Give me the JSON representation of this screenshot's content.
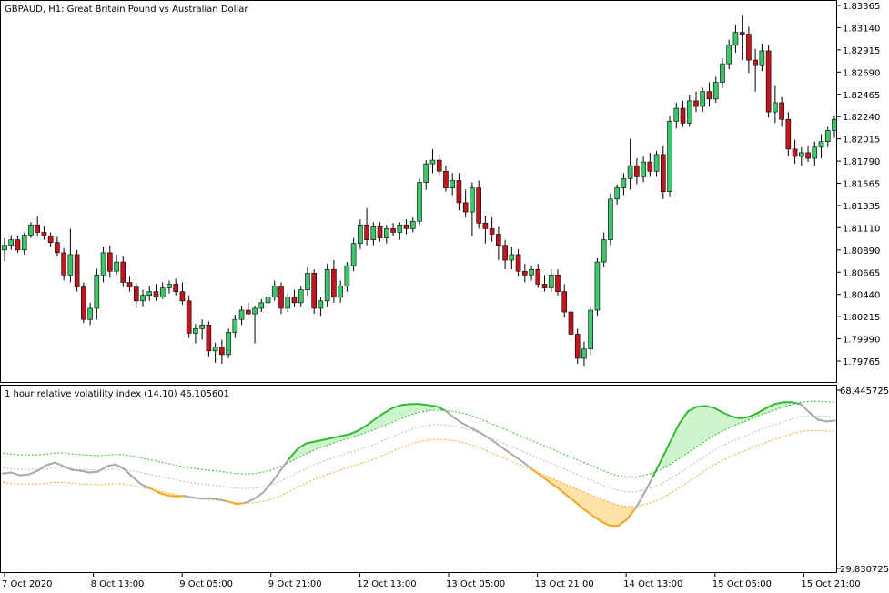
{
  "main_title": "GBPAUD, H1:  Great Britain Pound vs Australian Dollar",
  "indicator_title": "1 hour relative volatility index (14,10) 46.105601",
  "colors": {
    "bull": "#3cc86a",
    "bear": "#c0161f",
    "wick": "#000000",
    "rvi_up": "#33b833",
    "rvi_down": "#f5a623",
    "rvi_neutral": "#a9a9a9",
    "fill_up": "#cdf3cd",
    "fill_down": "#ffe2a8",
    "grid": "#000000"
  },
  "chart_data": [
    {
      "type": "candlestick",
      "title": "GBPAUD, H1:  Great Britain Pound vs Australian Dollar",
      "ylim": [
        1.7965,
        1.835
      ],
      "y_ticks": [
        "1.83365",
        "1.83140",
        "1.82915",
        "1.82690",
        "1.82465",
        "1.82240",
        "1.82015",
        "1.81790",
        "1.81565",
        "1.81335",
        "1.81110",
        "1.80890",
        "1.80665",
        "1.80440",
        "1.80215",
        "1.79990",
        "1.79765"
      ],
      "x_ticks": [
        "7 Oct 2020",
        "8 Oct 13:00",
        "9 Oct 05:00",
        "9 Oct 21:00",
        "12 Oct 13:00",
        "13 Oct 05:00",
        "13 Oct 21:00",
        "14 Oct 13:00",
        "15 Oct 05:00",
        "15 Oct 21:00"
      ],
      "candles": [
        {
          "o": 1.8085,
          "h": 1.8098,
          "l": 1.8073,
          "c": 1.809
        },
        {
          "o": 1.809,
          "h": 1.8101,
          "l": 1.8085,
          "c": 1.8096
        },
        {
          "o": 1.8096,
          "h": 1.81,
          "l": 1.8082,
          "c": 1.8085
        },
        {
          "o": 1.8085,
          "h": 1.8104,
          "l": 1.808,
          "c": 1.8101
        },
        {
          "o": 1.8101,
          "h": 1.8115,
          "l": 1.8098,
          "c": 1.8112
        },
        {
          "o": 1.8112,
          "h": 1.8121,
          "l": 1.81,
          "c": 1.8104
        },
        {
          "o": 1.8104,
          "h": 1.8111,
          "l": 1.8096,
          "c": 1.81
        },
        {
          "o": 1.81,
          "h": 1.8104,
          "l": 1.8088,
          "c": 1.8093
        },
        {
          "o": 1.8093,
          "h": 1.8099,
          "l": 1.8078,
          "c": 1.8082
        },
        {
          "o": 1.8082,
          "h": 1.8087,
          "l": 1.8052,
          "c": 1.8058
        },
        {
          "o": 1.8058,
          "h": 1.8108,
          "l": 1.805,
          "c": 1.808
        },
        {
          "o": 1.808,
          "h": 1.8085,
          "l": 1.804,
          "c": 1.8045
        },
        {
          "o": 1.8045,
          "h": 1.805,
          "l": 1.8006,
          "c": 1.801
        },
        {
          "o": 1.801,
          "h": 1.8028,
          "l": 1.8004,
          "c": 1.8022
        },
        {
          "o": 1.8022,
          "h": 1.8065,
          "l": 1.801,
          "c": 1.8058
        },
        {
          "o": 1.8058,
          "h": 1.8088,
          "l": 1.805,
          "c": 1.8082
        },
        {
          "o": 1.8082,
          "h": 1.809,
          "l": 1.8055,
          "c": 1.8062
        },
        {
          "o": 1.8062,
          "h": 1.808,
          "l": 1.8058,
          "c": 1.8072
        },
        {
          "o": 1.8072,
          "h": 1.8078,
          "l": 1.8045,
          "c": 1.805
        },
        {
          "o": 1.805,
          "h": 1.8056,
          "l": 1.804,
          "c": 1.8045
        },
        {
          "o": 1.8045,
          "h": 1.805,
          "l": 1.8022,
          "c": 1.803
        },
        {
          "o": 1.803,
          "h": 1.8042,
          "l": 1.8024,
          "c": 1.8036
        },
        {
          "o": 1.8036,
          "h": 1.8046,
          "l": 1.803,
          "c": 1.804
        },
        {
          "o": 1.804,
          "h": 1.8048,
          "l": 1.803,
          "c": 1.8034
        },
        {
          "o": 1.8034,
          "h": 1.805,
          "l": 1.8032,
          "c": 1.8044
        },
        {
          "o": 1.8044,
          "h": 1.8052,
          "l": 1.8038,
          "c": 1.8048
        },
        {
          "o": 1.8048,
          "h": 1.8054,
          "l": 1.8036,
          "c": 1.804
        },
        {
          "o": 1.804,
          "h": 1.805,
          "l": 1.8026,
          "c": 1.803
        },
        {
          "o": 1.803,
          "h": 1.8036,
          "l": 1.799,
          "c": 1.7995
        },
        {
          "o": 1.7995,
          "h": 1.8005,
          "l": 1.7984,
          "c": 1.8
        },
        {
          "o": 1.8,
          "h": 1.801,
          "l": 1.7988,
          "c": 1.8004
        },
        {
          "o": 1.8004,
          "h": 1.8008,
          "l": 1.797,
          "c": 1.7976
        },
        {
          "o": 1.7976,
          "h": 1.7985,
          "l": 1.7963,
          "c": 1.798
        },
        {
          "o": 1.798,
          "h": 1.7988,
          "l": 1.7962,
          "c": 1.7972
        },
        {
          "o": 1.7972,
          "h": 1.8,
          "l": 1.7968,
          "c": 1.7996
        },
        {
          "o": 1.7996,
          "h": 1.8015,
          "l": 1.799,
          "c": 1.801
        },
        {
          "o": 1.801,
          "h": 1.8025,
          "l": 1.8004,
          "c": 1.802
        },
        {
          "o": 1.802,
          "h": 1.8028,
          "l": 1.8015,
          "c": 1.8016
        },
        {
          "o": 1.8016,
          "h": 1.8025,
          "l": 1.7984,
          "c": 1.8022
        },
        {
          "o": 1.8022,
          "h": 1.8032,
          "l": 1.8018,
          "c": 1.8028
        },
        {
          "o": 1.8028,
          "h": 1.8038,
          "l": 1.8024,
          "c": 1.8034
        },
        {
          "o": 1.8034,
          "h": 1.8052,
          "l": 1.803,
          "c": 1.8046
        },
        {
          "o": 1.8046,
          "h": 1.805,
          "l": 1.8016,
          "c": 1.8022
        },
        {
          "o": 1.8022,
          "h": 1.8038,
          "l": 1.8018,
          "c": 1.8034
        },
        {
          "o": 1.8034,
          "h": 1.8042,
          "l": 1.8024,
          "c": 1.8028
        },
        {
          "o": 1.8028,
          "h": 1.8046,
          "l": 1.8024,
          "c": 1.8042
        },
        {
          "o": 1.8042,
          "h": 1.8066,
          "l": 1.8036,
          "c": 1.806
        },
        {
          "o": 1.806,
          "h": 1.8064,
          "l": 1.8016,
          "c": 1.8022
        },
        {
          "o": 1.8022,
          "h": 1.8034,
          "l": 1.8014,
          "c": 1.803
        },
        {
          "o": 1.803,
          "h": 1.807,
          "l": 1.8024,
          "c": 1.8064
        },
        {
          "o": 1.8064,
          "h": 1.8074,
          "l": 1.8028,
          "c": 1.8034
        },
        {
          "o": 1.8034,
          "h": 1.8052,
          "l": 1.8028,
          "c": 1.8046
        },
        {
          "o": 1.8046,
          "h": 1.8072,
          "l": 1.804,
          "c": 1.8068
        },
        {
          "o": 1.8068,
          "h": 1.8098,
          "l": 1.8062,
          "c": 1.8092
        },
        {
          "o": 1.8092,
          "h": 1.8118,
          "l": 1.8086,
          "c": 1.8112
        },
        {
          "o": 1.8112,
          "h": 1.813,
          "l": 1.809,
          "c": 1.8096
        },
        {
          "o": 1.8096,
          "h": 1.8115,
          "l": 1.809,
          "c": 1.811
        },
        {
          "o": 1.811,
          "h": 1.8115,
          "l": 1.8094,
          "c": 1.8098
        },
        {
          "o": 1.8098,
          "h": 1.8112,
          "l": 1.8092,
          "c": 1.8108
        },
        {
          "o": 1.8108,
          "h": 1.8114,
          "l": 1.81,
          "c": 1.8104
        },
        {
          "o": 1.8104,
          "h": 1.8115,
          "l": 1.8096,
          "c": 1.8112
        },
        {
          "o": 1.8112,
          "h": 1.8118,
          "l": 1.8102,
          "c": 1.8108
        },
        {
          "o": 1.8108,
          "h": 1.812,
          "l": 1.8104,
          "c": 1.8116
        },
        {
          "o": 1.8116,
          "h": 1.8162,
          "l": 1.8112,
          "c": 1.8158
        },
        {
          "o": 1.8158,
          "h": 1.8182,
          "l": 1.815,
          "c": 1.8178
        },
        {
          "o": 1.8178,
          "h": 1.8194,
          "l": 1.8168,
          "c": 1.8182
        },
        {
          "o": 1.8182,
          "h": 1.8188,
          "l": 1.8164,
          "c": 1.817
        },
        {
          "o": 1.817,
          "h": 1.8176,
          "l": 1.8148,
          "c": 1.8152
        },
        {
          "o": 1.8152,
          "h": 1.8168,
          "l": 1.8144,
          "c": 1.816
        },
        {
          "o": 1.816,
          "h": 1.8168,
          "l": 1.8128,
          "c": 1.8136
        },
        {
          "o": 1.8136,
          "h": 1.815,
          "l": 1.812,
          "c": 1.8126
        },
        {
          "o": 1.8126,
          "h": 1.8158,
          "l": 1.81,
          "c": 1.8152
        },
        {
          "o": 1.8152,
          "h": 1.816,
          "l": 1.8108,
          "c": 1.8114
        },
        {
          "o": 1.8114,
          "h": 1.8122,
          "l": 1.8092,
          "c": 1.8108
        },
        {
          "o": 1.8108,
          "h": 1.812,
          "l": 1.8094,
          "c": 1.8102
        },
        {
          "o": 1.8102,
          "h": 1.811,
          "l": 1.8074,
          "c": 1.809
        },
        {
          "o": 1.809,
          "h": 1.8096,
          "l": 1.8064,
          "c": 1.8074
        },
        {
          "o": 1.8074,
          "h": 1.8088,
          "l": 1.8064,
          "c": 1.808
        },
        {
          "o": 1.808,
          "h": 1.8086,
          "l": 1.8056,
          "c": 1.8062
        },
        {
          "o": 1.8062,
          "h": 1.807,
          "l": 1.805,
          "c": 1.8058
        },
        {
          "o": 1.8058,
          "h": 1.8068,
          "l": 1.8052,
          "c": 1.8064
        },
        {
          "o": 1.8064,
          "h": 1.807,
          "l": 1.8044,
          "c": 1.8048
        },
        {
          "o": 1.8048,
          "h": 1.8058,
          "l": 1.804,
          "c": 1.8044
        },
        {
          "o": 1.8044,
          "h": 1.8064,
          "l": 1.804,
          "c": 1.8058
        },
        {
          "o": 1.8058,
          "h": 1.8064,
          "l": 1.8036,
          "c": 1.804
        },
        {
          "o": 1.804,
          "h": 1.8048,
          "l": 1.8012,
          "c": 1.8018
        },
        {
          "o": 1.8018,
          "h": 1.8024,
          "l": 1.7988,
          "c": 1.7994
        },
        {
          "o": 1.7994,
          "h": 1.8,
          "l": 1.7962,
          "c": 1.7968
        },
        {
          "o": 1.7968,
          "h": 1.7986,
          "l": 1.796,
          "c": 1.7978
        },
        {
          "o": 1.7978,
          "h": 1.8024,
          "l": 1.7972,
          "c": 1.802
        },
        {
          "o": 1.802,
          "h": 1.8076,
          "l": 1.8014,
          "c": 1.8072
        },
        {
          "o": 1.8072,
          "h": 1.8104,
          "l": 1.8066,
          "c": 1.8096
        },
        {
          "o": 1.8096,
          "h": 1.8146,
          "l": 1.809,
          "c": 1.814
        },
        {
          "o": 1.814,
          "h": 1.8156,
          "l": 1.8134,
          "c": 1.8152
        },
        {
          "o": 1.8152,
          "h": 1.8168,
          "l": 1.8144,
          "c": 1.8162
        },
        {
          "o": 1.8162,
          "h": 1.8205,
          "l": 1.815,
          "c": 1.8176
        },
        {
          "o": 1.8176,
          "h": 1.8184,
          "l": 1.8156,
          "c": 1.8164
        },
        {
          "o": 1.8164,
          "h": 1.8186,
          "l": 1.8158,
          "c": 1.818
        },
        {
          "o": 1.818,
          "h": 1.819,
          "l": 1.8164,
          "c": 1.817
        },
        {
          "o": 1.817,
          "h": 1.8192,
          "l": 1.8164,
          "c": 1.8188
        },
        {
          "o": 1.8188,
          "h": 1.8198,
          "l": 1.814,
          "c": 1.8148
        },
        {
          "o": 1.8148,
          "h": 1.823,
          "l": 1.8142,
          "c": 1.8224
        },
        {
          "o": 1.8224,
          "h": 1.8244,
          "l": 1.8216,
          "c": 1.8238
        },
        {
          "o": 1.8238,
          "h": 1.8246,
          "l": 1.8218,
          "c": 1.8222
        },
        {
          "o": 1.8222,
          "h": 1.8252,
          "l": 1.8218,
          "c": 1.8246
        },
        {
          "o": 1.8246,
          "h": 1.8256,
          "l": 1.8234,
          "c": 1.824
        },
        {
          "o": 1.824,
          "h": 1.826,
          "l": 1.8234,
          "c": 1.8256
        },
        {
          "o": 1.8256,
          "h": 1.8266,
          "l": 1.824,
          "c": 1.8248
        },
        {
          "o": 1.8248,
          "h": 1.8272,
          "l": 1.8244,
          "c": 1.8266
        },
        {
          "o": 1.8266,
          "h": 1.8292,
          "l": 1.826,
          "c": 1.8286
        },
        {
          "o": 1.8286,
          "h": 1.8312,
          "l": 1.828,
          "c": 1.8306
        },
        {
          "o": 1.8306,
          "h": 1.8328,
          "l": 1.8298,
          "c": 1.832
        },
        {
          "o": 1.832,
          "h": 1.8338,
          "l": 1.829,
          "c": 1.8318
        },
        {
          "o": 1.8318,
          "h": 1.8326,
          "l": 1.8276,
          "c": 1.829
        },
        {
          "o": 1.829,
          "h": 1.8302,
          "l": 1.8256,
          "c": 1.8284
        },
        {
          "o": 1.8284,
          "h": 1.8308,
          "l": 1.8278,
          "c": 1.83
        },
        {
          "o": 1.83,
          "h": 1.8306,
          "l": 1.8228,
          "c": 1.8234
        },
        {
          "o": 1.8234,
          "h": 1.8262,
          "l": 1.8222,
          "c": 1.8244
        },
        {
          "o": 1.8244,
          "h": 1.825,
          "l": 1.8218,
          "c": 1.8226
        },
        {
          "o": 1.8226,
          "h": 1.8234,
          "l": 1.8186,
          "c": 1.8194
        },
        {
          "o": 1.8194,
          "h": 1.8204,
          "l": 1.8178,
          "c": 1.8186
        },
        {
          "o": 1.8186,
          "h": 1.8196,
          "l": 1.8176,
          "c": 1.819
        },
        {
          "o": 1.819,
          "h": 1.8198,
          "l": 1.818,
          "c": 1.8184
        },
        {
          "o": 1.8184,
          "h": 1.8202,
          "l": 1.8176,
          "c": 1.8196
        },
        {
          "o": 1.8196,
          "h": 1.821,
          "l": 1.8184,
          "c": 1.8202
        },
        {
          "o": 1.8202,
          "h": 1.8218,
          "l": 1.8196,
          "c": 1.8214
        },
        {
          "o": 1.8214,
          "h": 1.823,
          "l": 1.8206,
          "c": 1.8226
        }
      ]
    },
    {
      "type": "line",
      "title": "1 hour relative volatility index (14,10) 46.105601",
      "ylim": [
        29.830725,
        68.445725
      ],
      "y_ticks": [
        "68.445725",
        "29.830725"
      ],
      "series": [
        {
          "values": [
            50.0,
            50.2,
            49.6,
            49.8,
            50.6,
            51.8,
            52.4,
            51.6,
            50.8,
            50.6,
            50.2,
            50.4,
            51.6,
            52.0,
            51.0,
            49.2,
            47.6,
            46.8,
            45.8,
            45.2,
            45.0,
            45.1,
            44.7,
            44.5,
            44.6,
            44.3,
            43.9,
            43.3,
            43.6,
            44.5,
            45.8,
            48.0,
            50.6,
            53.2,
            55.4,
            56.6,
            57.0,
            57.4,
            57.8,
            58.2,
            58.6,
            59.4,
            60.6,
            62.0,
            63.3,
            64.4,
            65.0,
            65.2,
            65.2,
            65.0,
            64.7,
            63.8,
            62.3,
            61.0,
            60.0,
            59.0,
            57.8,
            56.5,
            55.1,
            53.8,
            52.5,
            51.0,
            49.6,
            48.2,
            46.8,
            45.3,
            43.8,
            42.2,
            40.8,
            39.5,
            38.6,
            38.6,
            40.0,
            42.5,
            45.8,
            49.4,
            53.2,
            57.1,
            60.9,
            63.6,
            64.6,
            64.8,
            64.4,
            63.4,
            62.5,
            62.1,
            62.4,
            63.2,
            64.3,
            65.2,
            65.6,
            65.6,
            65.2,
            63.4,
            61.8,
            61.4,
            61.6
          ]
        },
        {
          "values": [
            51.3,
            51.0,
            50.9,
            50.9,
            50.9,
            51.0,
            51.3,
            51.3,
            51.1,
            50.9,
            50.8,
            50.7,
            50.8,
            51.0,
            50.9,
            50.6,
            50.2,
            49.8,
            49.4,
            49.0,
            48.6,
            48.2,
            47.9,
            47.7,
            47.5,
            47.3,
            47.0,
            46.8,
            46.7,
            46.8,
            47.1,
            47.6,
            48.3,
            49.2,
            50.2,
            51.1,
            52.0,
            52.7,
            53.4,
            54.0,
            54.6,
            55.2,
            55.8,
            56.5,
            57.3,
            58.1,
            58.9,
            59.6,
            60.2,
            60.5,
            60.7,
            60.6,
            60.4,
            60.0,
            59.5,
            58.8,
            58.0,
            57.2,
            56.4,
            55.6,
            54.8,
            54.0,
            53.2,
            52.4,
            51.6,
            50.8,
            50.0,
            49.2,
            48.4,
            47.6,
            46.9,
            46.3,
            46.0,
            46.0,
            46.4,
            47.0,
            47.8,
            48.9,
            50.1,
            51.3,
            52.6,
            53.9,
            55.1,
            56.1,
            57.0,
            57.8,
            58.5,
            59.3,
            60.0,
            60.7,
            61.3,
            61.9,
            62.4,
            62.6,
            62.6,
            62.5,
            62.4
          ]
        }
      ]
    }
  ]
}
